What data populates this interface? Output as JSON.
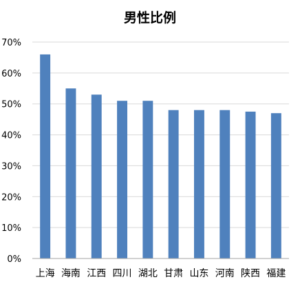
{
  "chart_data": {
    "type": "bar",
    "title": "男性比例",
    "categories": [
      "上海",
      "海南",
      "江西",
      "四川",
      "湖北",
      "甘肃",
      "山东",
      "河南",
      "陕西",
      "福建"
    ],
    "values": [
      0.66,
      0.55,
      0.53,
      0.51,
      0.51,
      0.48,
      0.48,
      0.48,
      0.475,
      0.47
    ],
    "ylim": [
      0,
      0.7
    ],
    "yticks": [
      0,
      0.1,
      0.2,
      0.3,
      0.4,
      0.5,
      0.6,
      0.7
    ],
    "ytick_labels": [
      "0%",
      "10%",
      "20%",
      "30%",
      "40%",
      "50%",
      "60%",
      "70%"
    ],
    "xlabel": "",
    "ylabel": "",
    "grid": true,
    "legend": false,
    "colors": {
      "bar": "#4F81BD",
      "grid": "#D9D9D9",
      "axis": "#A6A6A6"
    }
  }
}
